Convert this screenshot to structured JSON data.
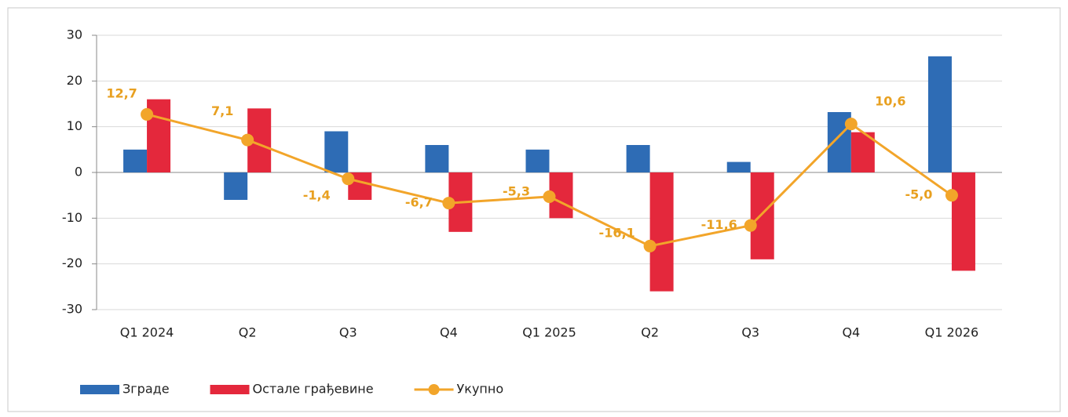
{
  "chart_data": {
    "type": "bar-line",
    "categories": [
      "Q1 2024",
      "Q2",
      "Q3",
      "Q4",
      "Q1 2025",
      "Q2",
      "Q3",
      "Q4",
      "Q1 2026"
    ],
    "series": [
      {
        "name": "Зграде",
        "type": "bar",
        "color": "#2e6cb5",
        "values": [
          5,
          -6,
          9,
          6,
          5,
          6,
          2.3,
          13.2,
          25.4
        ]
      },
      {
        "name": "Остале грађевине",
        "type": "bar",
        "color": "#e4283c",
        "values": [
          16,
          14,
          -6,
          -13,
          -10,
          -26,
          -19,
          8.8,
          -21.5
        ]
      },
      {
        "name": "Укупно",
        "type": "line",
        "color": "#f2a52a",
        "values": [
          12.7,
          7.1,
          -1.4,
          -6.7,
          -5.3,
          -16.1,
          -11.6,
          10.6,
          -5.0
        ],
        "value_labels": [
          "12,7",
          "7,1",
          "-1,4",
          "-6,7",
          "-5,3",
          "-16,1",
          "-11,6",
          "10,6",
          "-5,0"
        ]
      }
    ],
    "ylim": [
      -30,
      30
    ],
    "yticks": [
      -30,
      -20,
      -10,
      0,
      10,
      20,
      30
    ],
    "grid": true,
    "legend": "bottom-left"
  }
}
